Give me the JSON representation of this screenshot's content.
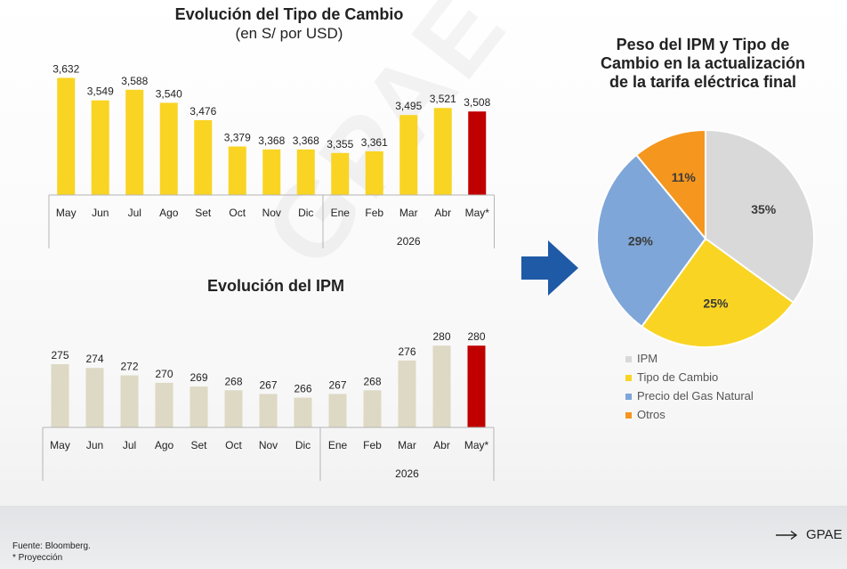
{
  "chart_data": [
    {
      "type": "bar",
      "title": "Evolución del Tipo de Cambio",
      "subtitle": "(en S/ por USD)",
      "categories": [
        "May",
        "Jun",
        "Jul",
        "Ago",
        "Set",
        "Oct",
        "Nov",
        "Dic",
        "Ene",
        "Feb",
        "Mar",
        "Abr",
        "May*"
      ],
      "values": [
        3.632,
        3.549,
        3.588,
        3.54,
        3.476,
        3.379,
        3.368,
        3.368,
        3.355,
        3.361,
        3.495,
        3.521,
        3.508
      ],
      "value_labels": [
        "3,632",
        "3,549",
        "3,588",
        "3,540",
        "3,476",
        "3,379",
        "3,368",
        "3,368",
        "3,355",
        "3,361",
        "3,495",
        "3,521",
        "3,508"
      ],
      "group_label": "2026",
      "ylim": [
        3.2,
        3.64
      ],
      "colors": {
        "bar": "#F9D423",
        "highlight": "#C00000"
      },
      "highlight_index": 12
    },
    {
      "type": "bar",
      "title": "Evolución del IPM",
      "categories": [
        "May",
        "Jun",
        "Jul",
        "Ago",
        "Set",
        "Oct",
        "Nov",
        "Dic",
        "Ene",
        "Feb",
        "Mar",
        "Abr",
        "May*"
      ],
      "values": [
        275,
        274,
        272,
        270,
        269,
        268,
        267,
        266,
        267,
        268,
        276,
        280,
        280
      ],
      "value_labels": [
        "275",
        "274",
        "272",
        "270",
        "269",
        "268",
        "267",
        "266",
        "267",
        "268",
        "276",
        "280",
        "280"
      ],
      "group_label": "2026",
      "ylim": [
        258,
        281
      ],
      "colors": {
        "bar": "#DDD9C4",
        "highlight": "#C00000"
      },
      "highlight_index": 12
    },
    {
      "type": "pie",
      "title": "Peso del IPM y  Tipo de Cambio en la actualización de la tarifa eléctrica final",
      "title_lines": [
        "Peso del IPM y  Tipo de",
        "Cambio en la actualización",
        "de la tarifa eléctrica final"
      ],
      "labels": [
        "IPM",
        "Tipo de Cambio",
        "Precio del Gas Natural",
        "Otros"
      ],
      "values": [
        35,
        25,
        29,
        11
      ],
      "value_labels": [
        "35%",
        "25%",
        "29%",
        "11%"
      ],
      "colors": [
        "#D9D9D9",
        "#F9D423",
        "#7EA6D8",
        "#F5961E"
      ],
      "legend_position": "bottom"
    }
  ],
  "footer": {
    "source": "Fuente: Bloomberg.",
    "note": "* Proyección",
    "brand": "GPAE"
  },
  "icons": {
    "arrow": "right-arrow-icon",
    "brand_arrow": "long-arrow-right-icon"
  },
  "colors": {
    "arrow": "#1F5AA6"
  }
}
